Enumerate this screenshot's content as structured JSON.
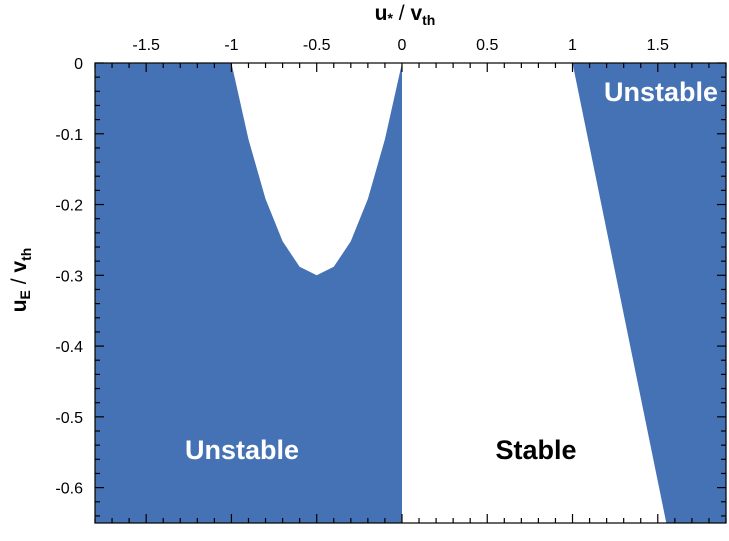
{
  "chart_data": {
    "type": "area",
    "xlabel": {
      "main": "u",
      "sub": "*",
      "sep": " / ",
      "main2": "v",
      "sub2": "th"
    },
    "ylabel": {
      "main": "u",
      "sub": "E",
      "sep": " / ",
      "main2": "v",
      "sub2": "th"
    },
    "xlim": [
      -1.8,
      1.9
    ],
    "ylim": [
      -0.65,
      0
    ],
    "x_ticks": [
      -1.5,
      -1,
      -0.5,
      0,
      0.5,
      1,
      1.5
    ],
    "x_tick_labels": [
      "-1.5",
      "-1",
      "-0.5",
      "0",
      "0.5",
      "1",
      "1.5"
    ],
    "y_ticks": [
      0,
      -0.1,
      -0.2,
      -0.3,
      -0.4,
      -0.5,
      -0.6
    ],
    "y_tick_labels": [
      "0",
      "-0.1",
      "-0.2",
      "-0.3",
      "-0.4",
      "-0.5",
      "-0.6"
    ],
    "x_axis_position": "top",
    "grid": false,
    "fill_color": "#4572b5",
    "stable_color": "#ffffff",
    "regions": [
      {
        "label": "Unstable",
        "label_color": "#ffffff",
        "state": "unstable",
        "boundary_x": [
          -1.8,
          -1.0,
          -0.9,
          -0.8,
          -0.7,
          -0.6,
          -0.5,
          -0.4,
          -0.3,
          -0.2,
          -0.1,
          0.0,
          0.0,
          -1.8
        ],
        "boundary_y": [
          0,
          0,
          -0.108,
          -0.192,
          -0.252,
          -0.288,
          -0.3,
          -0.288,
          -0.252,
          -0.192,
          -0.108,
          0,
          -0.65,
          -0.65
        ]
      },
      {
        "label": "Stable",
        "label_color": "#000000",
        "state": "stable",
        "boundary_x": [
          0.0,
          1.0,
          1.55,
          0.0
        ],
        "boundary_y": [
          0,
          0,
          -0.65,
          -0.65
        ]
      },
      {
        "label": "Unstable",
        "label_color": "#ffffff",
        "state": "unstable",
        "boundary_x": [
          1.0,
          1.9,
          1.9,
          1.55
        ],
        "boundary_y": [
          0,
          0,
          -0.65,
          -0.65
        ]
      }
    ]
  }
}
